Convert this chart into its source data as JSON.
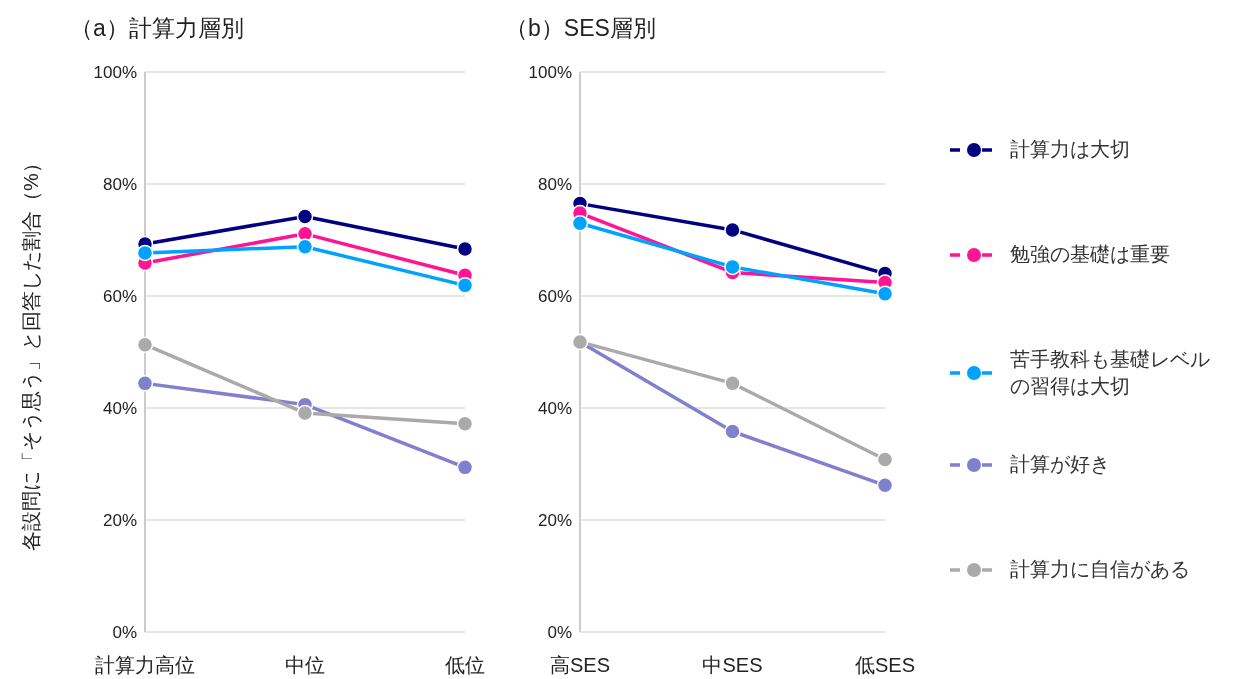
{
  "chart_data": [
    {
      "type": "line",
      "title": "（a）計算力層別",
      "ylabel": "各設問に「そう思う」と回答した割合（%）",
      "categories": [
        "計算力高位",
        "中位",
        "低位"
      ],
      "ylim": [
        0,
        100
      ],
      "yticks": [
        {
          "value": 0,
          "label": "0%"
        },
        {
          "value": 20,
          "label": "20%"
        },
        {
          "value": 40,
          "label": "40%"
        },
        {
          "value": 60,
          "label": "60%"
        },
        {
          "value": 80,
          "label": "80%"
        },
        {
          "value": 100,
          "label": "100%"
        }
      ],
      "grid": "y",
      "marker": "circle",
      "line_style": "solid",
      "series": [
        {
          "color": "#000080",
          "values": [
            69.3,
            74.2,
            68.4
          ]
        },
        {
          "color": "#ff1493",
          "values": [
            65.9,
            71.1,
            63.7
          ]
        },
        {
          "color": "#00a2ff",
          "values": [
            67.7,
            68.8,
            61.9
          ]
        },
        {
          "color": "#8080cc",
          "values": [
            44.4,
            40.6,
            29.4
          ]
        },
        {
          "color": "#aaaaaa",
          "values": [
            51.3,
            39.1,
            37.2
          ]
        }
      ]
    },
    {
      "type": "line",
      "title": "（b）SES層別",
      "categories": [
        "高SES",
        "中SES",
        "低SES"
      ],
      "ylim": [
        0,
        100
      ],
      "yticks": [
        {
          "value": 0,
          "label": "0%"
        },
        {
          "value": 20,
          "label": "20%"
        },
        {
          "value": 40,
          "label": "40%"
        },
        {
          "value": 60,
          "label": "60%"
        },
        {
          "value": 80,
          "label": "80%"
        },
        {
          "value": 100,
          "label": "100%"
        }
      ],
      "grid": "y",
      "marker": "circle",
      "line_style": "solid",
      "legend": "right",
      "series": [
        {
          "name": "計算力は大切",
          "color": "#000080",
          "values": [
            76.5,
            71.8,
            64.0
          ]
        },
        {
          "name": "勉強の基礎は重要",
          "color": "#ff1493",
          "values": [
            74.8,
            64.2,
            62.4
          ]
        },
        {
          "name": "苦手教科も基礎レベルの習得は大切",
          "color": "#00a2ff",
          "values": [
            73.0,
            65.2,
            60.4
          ]
        },
        {
          "name": "計算が好き",
          "color": "#8080cc",
          "values": [
            51.8,
            35.8,
            26.2
          ]
        },
        {
          "name": "計算力に自信がある",
          "color": "#aaaaaa",
          "values": [
            51.8,
            44.4,
            30.8
          ]
        }
      ]
    }
  ]
}
